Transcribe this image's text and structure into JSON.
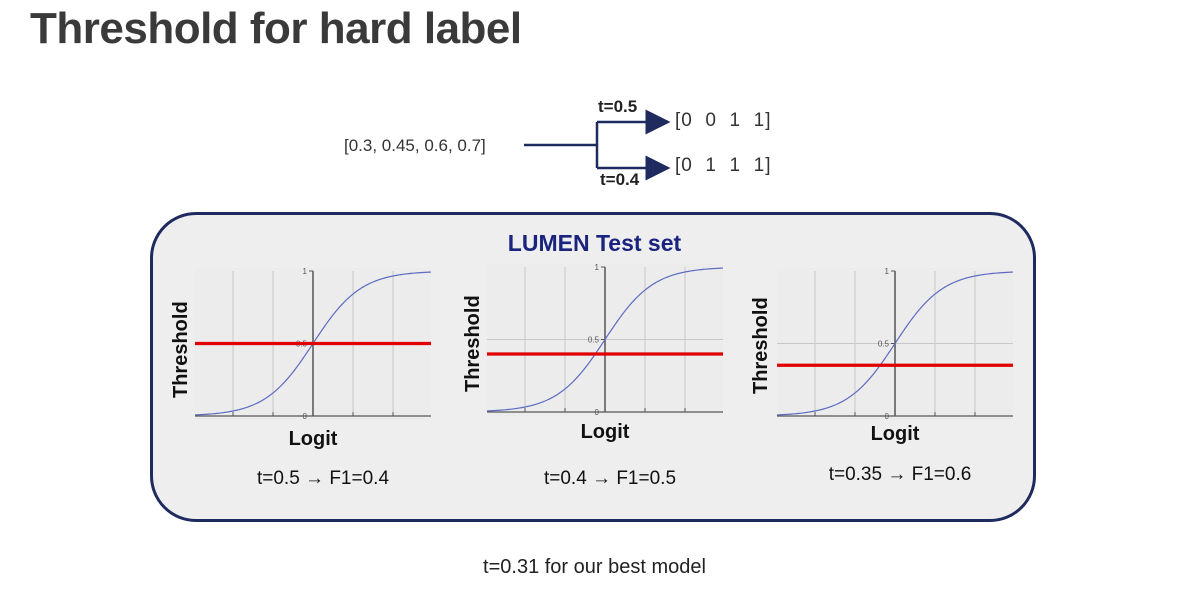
{
  "title": "Threshold for hard label",
  "flow": {
    "input": "[0.3, 0.45, 0.6, 0.7]",
    "top_threshold": "t=0.5",
    "top_output": "[0  0  1  1]",
    "bottom_threshold": "t=0.4",
    "bottom_output": "[0  1  1  1]"
  },
  "panel": {
    "title": "LUMEN Test set",
    "color_border": "#1f2a5e",
    "color_title": "#1a237e"
  },
  "chart_data": [
    {
      "type": "line",
      "title": "",
      "xlabel": "Logit",
      "ylabel": "Threshold",
      "ylim": [
        0,
        1
      ],
      "y_ticks": [
        "1",
        "0.5",
        "0"
      ],
      "series": [
        {
          "values": "sigmoid(logit)",
          "color": "#5c6bc0"
        }
      ],
      "threshold": 0.5,
      "threshold_color": "#e00000",
      "caption": "t=0.5 → F1=0.4"
    },
    {
      "type": "line",
      "title": "",
      "xlabel": "Logit",
      "ylabel": "Threshold",
      "ylim": [
        0,
        1
      ],
      "y_ticks": [
        "1",
        "0.5",
        "0"
      ],
      "series": [
        {
          "values": "sigmoid(logit)",
          "color": "#5c6bc0"
        }
      ],
      "threshold": 0.4,
      "threshold_color": "#e00000",
      "caption": "t=0.4 → F1=0.5"
    },
    {
      "type": "line",
      "title": "",
      "xlabel": "Logit",
      "ylabel": "Threshold",
      "ylim": [
        0,
        1
      ],
      "y_ticks": [
        "1",
        "0.5",
        "0"
      ],
      "series": [
        {
          "values": "sigmoid(logit)",
          "color": "#5c6bc0"
        }
      ],
      "threshold": 0.35,
      "threshold_color": "#e00000",
      "caption": "t=0.35 → F1=0.6"
    }
  ],
  "footer": "t=0.31 for our best model"
}
